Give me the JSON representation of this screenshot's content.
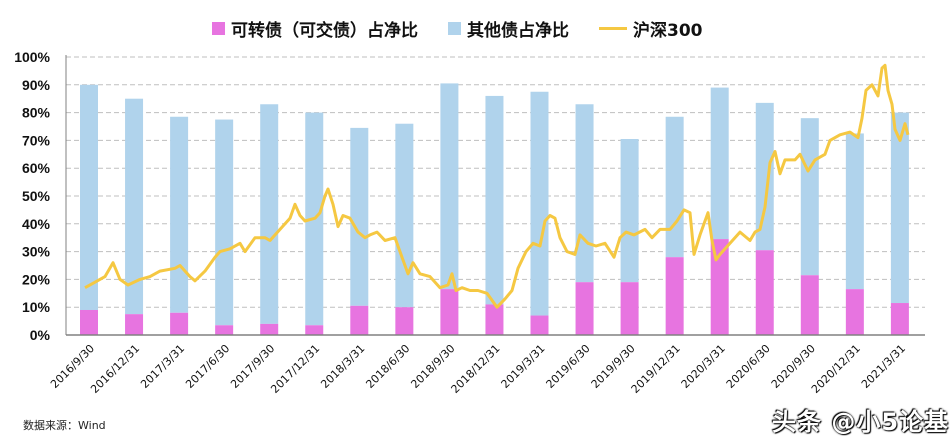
{
  "legend": {
    "convertible_label": "可转债（可交债）占净比",
    "other_label": "其他债占净比",
    "index_label": "沪深300"
  },
  "colors": {
    "convertible": "#E774E0",
    "other": "#B0D3EC",
    "index": "#F5C842",
    "grid": "#BFBFBF",
    "axis": "#808080"
  },
  "source": "数据来源：Wind",
  "watermark": "头条 @小5论基",
  "chart_data": {
    "type": "bar",
    "stacked": true,
    "title": "",
    "xlabel": "",
    "ylabel": "",
    "ylim": [
      0,
      100
    ],
    "yticks": [
      "0%",
      "10%",
      "20%",
      "30%",
      "40%",
      "50%",
      "60%",
      "70%",
      "80%",
      "90%",
      "100%"
    ],
    "grid": "horizontal dashed",
    "legend_position": "top",
    "categories": [
      "2016/9/30",
      "2016/12/31",
      "2017/3/31",
      "2017/6/30",
      "2017/9/30",
      "2017/12/31",
      "2018/3/31",
      "2018/6/30",
      "2018/9/30",
      "2018/12/31",
      "2019/3/31",
      "2019/6/30",
      "2019/9/30",
      "2019/12/31",
      "2020/3/31",
      "2020/6/30",
      "2020/9/30",
      "2020/12/31",
      "2021/3/31"
    ],
    "series": [
      {
        "name": "可转债（可交债）占净比",
        "type": "bar",
        "values": [
          9,
          7.5,
          8,
          3.5,
          4,
          3.5,
          10.5,
          10,
          16.5,
          11,
          7,
          19,
          19,
          28,
          34.5,
          30.5,
          21.5,
          16.5,
          11.5
        ]
      },
      {
        "name": "其他债占净比",
        "type": "bar",
        "values": [
          81,
          77.5,
          70.5,
          74,
          79,
          76.5,
          64,
          66,
          74,
          75,
          80.5,
          64,
          51.5,
          50.5,
          54.5,
          53,
          56.5,
          56,
          68.5
        ]
      },
      {
        "name": "沪深300",
        "type": "line",
        "note": "index scaled to right of axis; plotted as % of axis",
        "points": [
          [
            85,
            17
          ],
          [
            95,
            19
          ],
          [
            105,
            21
          ],
          [
            113,
            26
          ],
          [
            120,
            20
          ],
          [
            128,
            18
          ],
          [
            140,
            20
          ],
          [
            150,
            21
          ],
          [
            160,
            23
          ],
          [
            175,
            24
          ],
          [
            180,
            25
          ],
          [
            190,
            21
          ],
          [
            195,
            19.5
          ],
          [
            205,
            23
          ],
          [
            215,
            28
          ],
          [
            220,
            30
          ],
          [
            230,
            31
          ],
          [
            240,
            33
          ],
          [
            245,
            30
          ],
          [
            255,
            35
          ],
          [
            265,
            35
          ],
          [
            270,
            34
          ],
          [
            280,
            38
          ],
          [
            290,
            42
          ],
          [
            295,
            47
          ],
          [
            300,
            43
          ],
          [
            305,
            41
          ],
          [
            315,
            42
          ],
          [
            320,
            44
          ],
          [
            325,
            50
          ],
          [
            328,
            52.5
          ],
          [
            333,
            47
          ],
          [
            338,
            39
          ],
          [
            343,
            43
          ],
          [
            350,
            42
          ],
          [
            358,
            37
          ],
          [
            365,
            35
          ],
          [
            370,
            36
          ],
          [
            377,
            37
          ],
          [
            385,
            34
          ],
          [
            395,
            35
          ],
          [
            402,
            28
          ],
          [
            408,
            22
          ],
          [
            413,
            26
          ],
          [
            420,
            22
          ],
          [
            430,
            21
          ],
          [
            440,
            17
          ],
          [
            448,
            18
          ],
          [
            452,
            22
          ],
          [
            456,
            16
          ],
          [
            462,
            17
          ],
          [
            470,
            16
          ],
          [
            478,
            16
          ],
          [
            487,
            15
          ],
          [
            497,
            10
          ],
          [
            505,
            13
          ],
          [
            512,
            16
          ],
          [
            518,
            24
          ],
          [
            526,
            30
          ],
          [
            533,
            33
          ],
          [
            540,
            32
          ],
          [
            545,
            41
          ],
          [
            550,
            43
          ],
          [
            555,
            42
          ],
          [
            560,
            35
          ],
          [
            567,
            30
          ],
          [
            575,
            29
          ],
          [
            580,
            36
          ],
          [
            588,
            33
          ],
          [
            596,
            32
          ],
          [
            605,
            33
          ],
          [
            614,
            28
          ],
          [
            620,
            35
          ],
          [
            626,
            37
          ],
          [
            634,
            36
          ],
          [
            645,
            38
          ],
          [
            652,
            35
          ],
          [
            660,
            38
          ],
          [
            670,
            38
          ],
          [
            677,
            41
          ],
          [
            684,
            45
          ],
          [
            690,
            44
          ],
          [
            694,
            29
          ],
          [
            700,
            36
          ],
          [
            705,
            41
          ],
          [
            708,
            44
          ],
          [
            712,
            34
          ],
          [
            716,
            27
          ],
          [
            720,
            29
          ],
          [
            730,
            33
          ],
          [
            740,
            37
          ],
          [
            750,
            34
          ],
          [
            755,
            37
          ],
          [
            760,
            38
          ],
          [
            765,
            46
          ],
          [
            770,
            62
          ],
          [
            775,
            66
          ],
          [
            780,
            58
          ],
          [
            785,
            63
          ],
          [
            795,
            63
          ],
          [
            800,
            65
          ],
          [
            808,
            59
          ],
          [
            815,
            63
          ],
          [
            825,
            65
          ],
          [
            830,
            70
          ],
          [
            840,
            72
          ],
          [
            850,
            73
          ],
          [
            858,
            71
          ],
          [
            862,
            78
          ],
          [
            866,
            88
          ],
          [
            872,
            90
          ],
          [
            878,
            86
          ],
          [
            882,
            96
          ],
          [
            885,
            97
          ],
          [
            888,
            88
          ],
          [
            892,
            83
          ],
          [
            895,
            74
          ],
          [
            900,
            70
          ],
          [
            905,
            76
          ],
          [
            908,
            72
          ]
        ]
      }
    ]
  }
}
